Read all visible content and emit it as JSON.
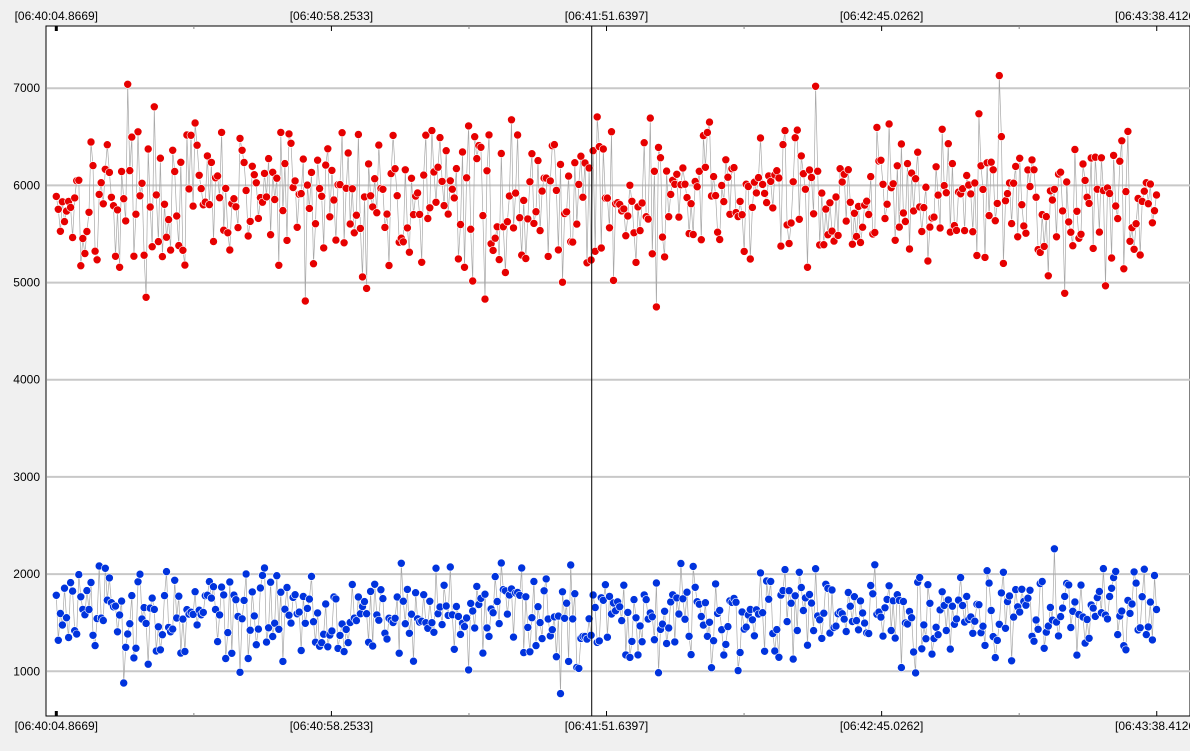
{
  "chart_data": {
    "type": "scatter",
    "x_tick_labels": [
      "[06:40:04.8669]",
      "[06:40:58.2533]",
      "[06:41:51.6397]",
      "[06:42:45.0262]",
      "[06:43:38.4126]"
    ],
    "x_tick_seconds": [
      0,
      53.3864,
      106.7728,
      160.1593,
      213.5457
    ],
    "xlim_seconds": [
      -2.0,
      220.0
    ],
    "y_ticks": [
      1000,
      2000,
      3000,
      4000,
      5000,
      6000,
      7000
    ],
    "ylim": [
      540,
      7640
    ],
    "grid": true,
    "cursor_x_seconds": 103.9,
    "series": [
      {
        "color": "#e60000",
        "n_points": 540,
        "x_range_seconds": [
          0,
          213.5
        ],
        "typical_range": [
          5200,
          6600
        ],
        "mean": 5870,
        "min": 4740,
        "max": 7130,
        "highlights": [
          {
            "x": 13.9,
            "y": 7040
          },
          {
            "x": 48.5,
            "y": 4810
          },
          {
            "x": 83.2,
            "y": 4830
          },
          {
            "x": 116.3,
            "y": 4750
          },
          {
            "x": 147.5,
            "y": 7020
          },
          {
            "x": 183.0,
            "y": 7130
          },
          {
            "x": 195.5,
            "y": 4890
          }
        ]
      },
      {
        "color": "#0033dd",
        "n_points": 540,
        "x_range_seconds": [
          0,
          213.5
        ],
        "typical_range": [
          1150,
          2050
        ],
        "mean": 1600,
        "min": 770,
        "max": 2260,
        "highlights": [
          {
            "x": 12.9,
            "y": 880
          },
          {
            "x": 35.6,
            "y": 990
          },
          {
            "x": 97.8,
            "y": 770
          },
          {
            "x": 101.5,
            "y": 1030
          },
          {
            "x": 193.8,
            "y": 2260
          }
        ]
      }
    ]
  }
}
